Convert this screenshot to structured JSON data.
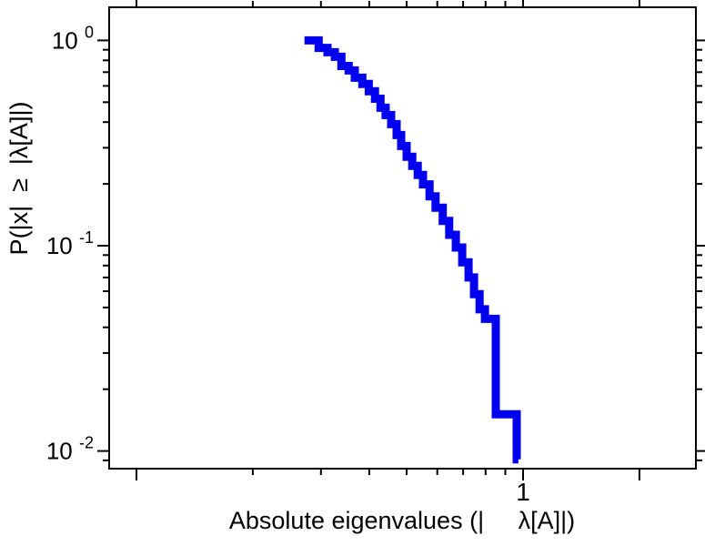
{
  "figure": {
    "background": "#ffffff",
    "axis_color": "#000000"
  },
  "chart_data": {
    "type": "line",
    "subtype": "ccdf-step",
    "title": "",
    "xlabel": "Absolute eigenvalues (|     λ[A]|)",
    "ylabel": "P(|x|  ≥  |λ[A]|)",
    "xscale": "log",
    "yscale": "log",
    "xlim": [
      0.085,
      2.8
    ],
    "ylim": [
      0.0082,
      1.45
    ],
    "grid": false,
    "legend": "none",
    "line_color": "#0000ee",
    "line_width": 9,
    "x_major_ticks": [
      0.1,
      1,
      2
    ],
    "x_minor_ticks": [
      0.2,
      0.3,
      0.4,
      0.5,
      0.6,
      0.7,
      0.8,
      0.9
    ],
    "x_tick_labels": [
      {
        "value": 1,
        "label": "1"
      }
    ],
    "y_major_ticks": [
      1,
      0.1,
      0.01
    ],
    "y_minor_ticks": [
      0.9,
      0.8,
      0.7,
      0.6,
      0.5,
      0.4,
      0.3,
      0.2,
      0.09,
      0.08,
      0.07,
      0.06,
      0.05,
      0.04,
      0.03,
      0.02,
      0.009
    ],
    "y_tick_labels": [
      {
        "value": 1,
        "base": "10",
        "exp": "0"
      },
      {
        "value": 0.1,
        "base": "10",
        "exp": "-1"
      },
      {
        "value": 0.01,
        "base": "10",
        "exp": "-2"
      }
    ],
    "points": [
      [
        0.272,
        1.0
      ],
      [
        0.296,
        0.92
      ],
      [
        0.312,
        0.876
      ],
      [
        0.326,
        0.832
      ],
      [
        0.339,
        0.751
      ],
      [
        0.354,
        0.714
      ],
      [
        0.367,
        0.658
      ],
      [
        0.384,
        0.613
      ],
      [
        0.399,
        0.565
      ],
      [
        0.414,
        0.52
      ],
      [
        0.428,
        0.47
      ],
      [
        0.441,
        0.433
      ],
      [
        0.456,
        0.391
      ],
      [
        0.471,
        0.346
      ],
      [
        0.484,
        0.306
      ],
      [
        0.5,
        0.271
      ],
      [
        0.517,
        0.245
      ],
      [
        0.534,
        0.221
      ],
      [
        0.551,
        0.199
      ],
      [
        0.573,
        0.174
      ],
      [
        0.594,
        0.153
      ],
      [
        0.62,
        0.132
      ],
      [
        0.644,
        0.113
      ],
      [
        0.67,
        0.098
      ],
      [
        0.696,
        0.083
      ],
      [
        0.723,
        0.07
      ],
      [
        0.747,
        0.058
      ],
      [
        0.772,
        0.049
      ],
      [
        0.797,
        0.044
      ],
      [
        0.85,
        0.0151
      ],
      [
        0.963,
        0.0091
      ],
      [
        0.973,
        0.0091
      ]
    ]
  }
}
